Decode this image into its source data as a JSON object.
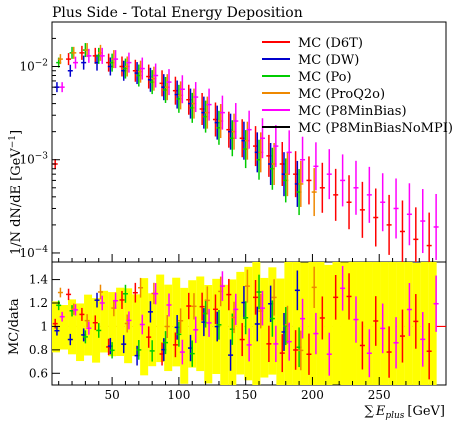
{
  "chart_data": {
    "type": "scatter",
    "title": "Plus Side - Total Energy Deposition",
    "xlabel": "∑E_plus [GeV]",
    "xlabel_parts": {
      "sum": "∑",
      "E": "E",
      "sub": "plus",
      "unit": "[GeV]"
    },
    "main_panel": {
      "ylabel": "1/N dN/dE [GeV^-1]",
      "ylabel_parts": {
        "a": "1/N dN/dE [GeV",
        "sup": "−1",
        "b": "]"
      },
      "yscale": "log",
      "ylim": [
        8e-05,
        0.03
      ],
      "yticks": [
        {
          "value": 0.0001,
          "base": "10",
          "exp": "−4"
        },
        {
          "value": 0.001,
          "base": "10",
          "exp": "−3"
        },
        {
          "value": 0.01,
          "base": "10",
          "exp": "−2"
        }
      ],
      "xlim": [
        5,
        300
      ]
    },
    "ratio_panel": {
      "ylabel": "MC/data",
      "ylim": [
        0.5,
        1.55
      ],
      "yticks": [
        "0.6",
        "0.8",
        "1",
        "1.2",
        "1.4"
      ],
      "reference_line": 1
    },
    "xticks": [
      "50",
      "100",
      "150",
      "200",
      "250"
    ],
    "xtick_values": [
      50,
      100,
      150,
      200,
      250
    ],
    "legend": {
      "placement": "top-right"
    },
    "series": [
      {
        "name": "MC (D6T)",
        "color": "#ff0000",
        "x": [
          10,
          20,
          30,
          40,
          50,
          60,
          70,
          80,
          90,
          100,
          110,
          120,
          130,
          140,
          150,
          160,
          170,
          180,
          190,
          200,
          210,
          220,
          230,
          240,
          250,
          260,
          270,
          280,
          290
        ],
        "y": [
          0.0009,
          0.012,
          0.014,
          0.013,
          0.011,
          0.01,
          0.009,
          0.0078,
          0.0066,
          0.0055,
          0.0044,
          0.0035,
          0.0027,
          0.0021,
          0.0017,
          0.0014,
          0.0011,
          0.0009,
          0.0007,
          0.0006,
          0.0005,
          0.00042,
          0.00035,
          0.00029,
          0.00024,
          0.0002,
          0.00017,
          0.00014,
          0.00012
        ]
      },
      {
        "name": "MC (DW)",
        "color": "#0000cc",
        "x": [
          10,
          20,
          30,
          40,
          50,
          60,
          70,
          80,
          90,
          100,
          110,
          120,
          130,
          140,
          150,
          160,
          170,
          180,
          190
        ],
        "y": [
          0.006,
          0.009,
          0.011,
          0.011,
          0.01,
          0.009,
          0.0085,
          0.0072,
          0.006,
          0.005,
          0.004,
          0.0032,
          0.0025,
          0.002,
          0.0016,
          0.0012,
          0.0009,
          0.0007,
          0.00055
        ]
      },
      {
        "name": "MC (Po)",
        "color": "#00cc00",
        "x": [
          10,
          20,
          30,
          40,
          50,
          60,
          70,
          80,
          90,
          100,
          110,
          120,
          130,
          140,
          150,
          160,
          170,
          180,
          190
        ],
        "y": [
          0.011,
          0.014,
          0.015,
          0.013,
          0.011,
          0.0095,
          0.008,
          0.0068,
          0.0056,
          0.0045,
          0.0036,
          0.0029,
          0.0022,
          0.0017,
          0.0013,
          0.001,
          0.0008,
          0.0006,
          0.00045
        ]
      },
      {
        "name": "MC (ProQ2o)",
        "color": "#ee8800",
        "x": [
          10,
          20,
          30,
          40,
          50,
          60,
          70,
          80,
          90,
          100,
          110,
          120,
          130,
          140,
          150,
          160,
          170,
          180,
          190,
          200
        ],
        "y": [
          0.012,
          0.014,
          0.015,
          0.014,
          0.012,
          0.01,
          0.0088,
          0.0074,
          0.006,
          0.0049,
          0.004,
          0.0032,
          0.0026,
          0.002,
          0.0016,
          0.0012,
          0.0009,
          0.0007,
          0.00055,
          0.00045
        ]
      },
      {
        "name": "MC (P8MinBias)",
        "color": "#ff00ff",
        "x": [
          10,
          20,
          30,
          40,
          50,
          60,
          70,
          80,
          90,
          100,
          110,
          120,
          130,
          140,
          150,
          160,
          170,
          180,
          190,
          200,
          210,
          220,
          230,
          240,
          250,
          260,
          270,
          280,
          290
        ],
        "y": [
          0.006,
          0.011,
          0.013,
          0.013,
          0.012,
          0.011,
          0.0095,
          0.008,
          0.0068,
          0.0057,
          0.0047,
          0.0039,
          0.0032,
          0.0026,
          0.0021,
          0.0017,
          0.0014,
          0.0012,
          0.001,
          0.00085,
          0.0007,
          0.0006,
          0.0005,
          0.00042,
          0.00035,
          0.0003,
          0.00026,
          0.00022,
          0.00019
        ]
      },
      {
        "name": "MC (P8MinBiasNoMPI)",
        "color": "#000000",
        "x": [],
        "y": []
      }
    ],
    "ratio_band_color": "#ffff00"
  }
}
